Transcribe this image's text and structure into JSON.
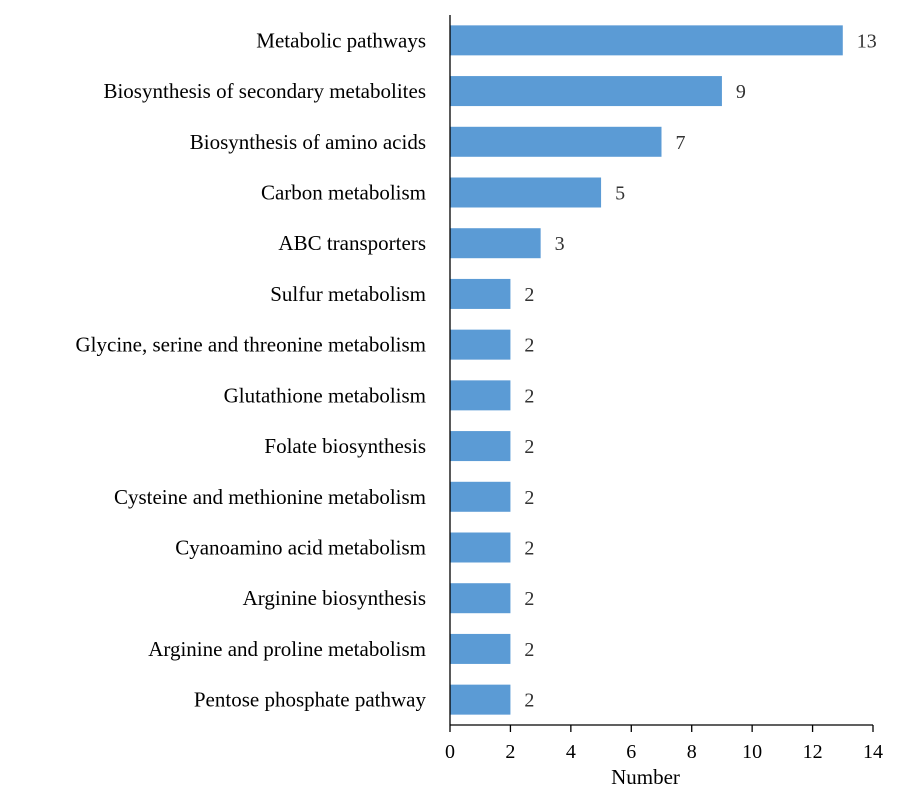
{
  "chart_data": {
    "type": "bar",
    "orientation": "horizontal",
    "categories": [
      "Metabolic pathways",
      "Biosynthesis of secondary metabolites",
      "Biosynthesis of amino acids",
      "Carbon metabolism",
      "ABC transporters",
      "Sulfur metabolism",
      "Glycine, serine and threonine metabolism",
      "Glutathione metabolism",
      "Folate biosynthesis",
      "Cysteine and methionine metabolism",
      "Cyanoamino acid metabolism",
      "Arginine biosynthesis",
      "Arginine and proline metabolism",
      "Pentose phosphate pathway"
    ],
    "values": [
      13,
      9,
      7,
      5,
      3,
      2,
      2,
      2,
      2,
      2,
      2,
      2,
      2,
      2
    ],
    "title": "",
    "xlabel": "Number",
    "ylabel": "",
    "xlim": [
      0,
      14
    ],
    "xticks": [
      0,
      2,
      4,
      6,
      8,
      10,
      12,
      14
    ],
    "data_labels": true,
    "grid": false,
    "legend": "none",
    "bar_color": "#5b9bd5"
  }
}
